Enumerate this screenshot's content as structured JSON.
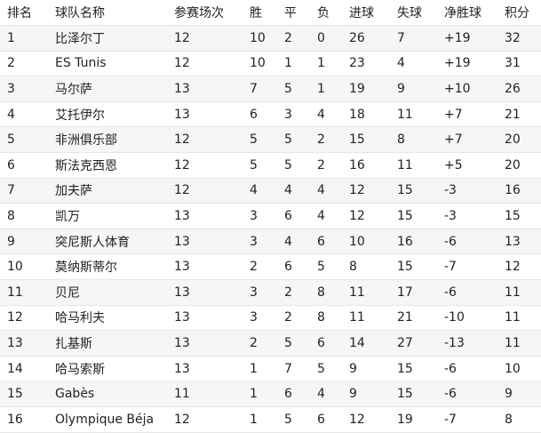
{
  "table": {
    "header": [
      "排名",
      "球队名称",
      "参赛场次",
      "胜",
      "平",
      "负",
      "进球",
      "失球",
      "净胜球",
      "积分"
    ],
    "rows": [
      [
        "1",
        "比泽尔丁",
        "12",
        "10",
        "2",
        "0",
        "26",
        "7",
        "+19",
        "32"
      ],
      [
        "2",
        "ES Tunis",
        "12",
        "10",
        "1",
        "1",
        "23",
        "4",
        "+19",
        "31"
      ],
      [
        "3",
        "马尔萨",
        "13",
        "7",
        "5",
        "1",
        "19",
        "9",
        "+10",
        "26"
      ],
      [
        "4",
        "艾托伊尔",
        "13",
        "6",
        "3",
        "4",
        "18",
        "11",
        "+7",
        "21"
      ],
      [
        "5",
        "非洲俱乐部",
        "12",
        "5",
        "5",
        "2",
        "15",
        "8",
        "+7",
        "20"
      ],
      [
        "6",
        "斯法克西恩",
        "12",
        "5",
        "5",
        "2",
        "16",
        "11",
        "+5",
        "20"
      ],
      [
        "7",
        "加夫萨",
        "12",
        "4",
        "4",
        "4",
        "12",
        "15",
        "-3",
        "16"
      ],
      [
        "8",
        "凯万",
        "13",
        "3",
        "6",
        "4",
        "12",
        "15",
        "-3",
        "15"
      ],
      [
        "9",
        "突尼斯人体育",
        "13",
        "3",
        "4",
        "6",
        "10",
        "16",
        "-6",
        "13"
      ],
      [
        "10",
        "莫纳斯蒂尔",
        "13",
        "2",
        "6",
        "5",
        "8",
        "15",
        "-7",
        "12"
      ],
      [
        "11",
        "贝尼",
        "13",
        "3",
        "2",
        "8",
        "11",
        "17",
        "-6",
        "11"
      ],
      [
        "12",
        "哈马利夫",
        "13",
        "3",
        "2",
        "8",
        "11",
        "21",
        "-10",
        "11"
      ],
      [
        "13",
        "扎基斯",
        "13",
        "2",
        "5",
        "6",
        "14",
        "27",
        "-13",
        "11"
      ],
      [
        "14",
        "哈马索斯",
        "13",
        "1",
        "7",
        "5",
        "9",
        "15",
        "-6",
        "10"
      ],
      [
        "15",
        "Gabès",
        "11",
        "1",
        "6",
        "4",
        "9",
        "15",
        "-6",
        "9"
      ],
      [
        "16",
        "Olympique Béja",
        "12",
        "1",
        "5",
        "6",
        "12",
        "19",
        "-7",
        "8"
      ]
    ]
  }
}
